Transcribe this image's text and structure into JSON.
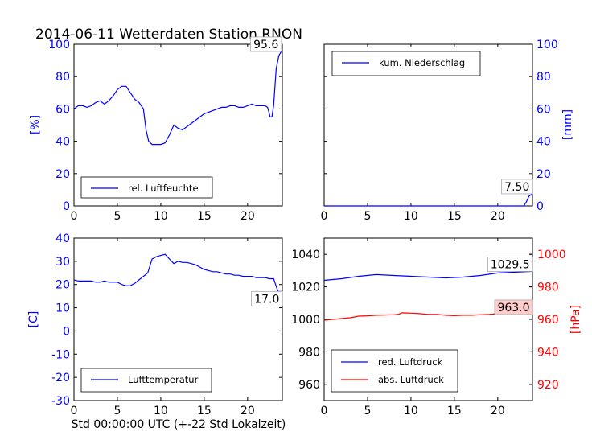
{
  "title": "2014-06-11 Wetterdaten Station RNON",
  "xlabel": "Std 00:00:00 UTC (+-22 Std Lokalzeit)",
  "colors": {
    "blue": "#0000ff",
    "red": "#ff0000"
  },
  "chart_data": [
    {
      "id": "humidity",
      "type": "line",
      "ylabel": "[%]",
      "xlim": [
        0,
        24
      ],
      "ylim": [
        0,
        100
      ],
      "xticks": [
        0,
        5,
        10,
        15,
        20
      ],
      "yticks": [
        0,
        20,
        40,
        60,
        80,
        100
      ],
      "legend_position": "lower-left",
      "series": [
        {
          "name": "rel. Luftfeuchte",
          "color": "#0000ff",
          "x": [
            0,
            0.5,
            1,
            1.5,
            2,
            2.5,
            3,
            3.5,
            4,
            4.5,
            5,
            5.5,
            6,
            6.5,
            7,
            7.5,
            8,
            8.3,
            8.6,
            9,
            9.5,
            10,
            10.5,
            11,
            11.5,
            12,
            12.5,
            13,
            13.5,
            14,
            14.5,
            15,
            15.5,
            16,
            16.5,
            17,
            17.5,
            18,
            18.5,
            19,
            19.5,
            20,
            20.5,
            21,
            21.5,
            22,
            22.3,
            22.6,
            22.8,
            23,
            23.3,
            23.6,
            23.9
          ],
          "values": [
            60,
            62,
            62,
            61,
            62,
            64,
            65,
            63,
            65,
            68,
            72,
            74,
            74,
            70,
            66,
            64,
            60,
            47,
            40,
            38,
            38,
            38,
            39,
            44,
            50,
            48,
            47,
            49,
            51,
            53,
            55,
            57,
            58,
            59,
            60,
            61,
            61,
            62,
            62,
            61,
            61,
            62,
            63,
            62,
            62,
            62,
            61,
            55,
            55,
            62,
            85,
            93,
            95.6
          ]
        }
      ],
      "annotations": [
        {
          "text": "95.6",
          "x": 23.9,
          "y": 95.6,
          "position": "upper-right"
        }
      ]
    },
    {
      "id": "precipitation",
      "type": "line",
      "ylabel": "[mm]",
      "xlim": [
        0,
        24
      ],
      "ylim": [
        0,
        100
      ],
      "xticks": [
        0,
        5,
        10,
        15,
        20
      ],
      "yticks": [
        0,
        20,
        40,
        60,
        80,
        100
      ],
      "y_axis_side": "right",
      "legend_position": "upper-left",
      "series": [
        {
          "name": "kum. Niederschlag",
          "color": "#0000ff",
          "x": [
            0,
            23,
            23.3,
            23.6,
            24
          ],
          "values": [
            0,
            0,
            2.5,
            6,
            7.5
          ]
        }
      ],
      "annotations": [
        {
          "text": "7.50",
          "x": 24,
          "y": 7.5,
          "position": "upper-right"
        }
      ]
    },
    {
      "id": "temperature",
      "type": "line",
      "ylabel": "[C]",
      "xlim": [
        0,
        24
      ],
      "ylim": [
        -30,
        40
      ],
      "xticks": [
        0,
        5,
        10,
        15,
        20
      ],
      "yticks": [
        -30,
        -20,
        -10,
        0,
        10,
        20,
        30,
        40
      ],
      "legend_position": "lower-left",
      "series": [
        {
          "name": "Lufttemperatur",
          "color": "#0000ff",
          "x": [
            0,
            0.5,
            1,
            1.5,
            2,
            2.5,
            3,
            3.5,
            4,
            4.5,
            5,
            5.5,
            6,
            6.5,
            7,
            7.5,
            8,
            8.5,
            9,
            9.5,
            10,
            10.5,
            11,
            11.5,
            12,
            12.5,
            13,
            13.5,
            14,
            14.5,
            15,
            15.5,
            16,
            16.5,
            17,
            17.5,
            18,
            18.5,
            19,
            19.5,
            20,
            20.5,
            21,
            21.5,
            22,
            22.5,
            23,
            23.5,
            24
          ],
          "values": [
            22,
            21.5,
            21.5,
            21.5,
            21.5,
            21,
            21,
            21.5,
            21,
            21,
            21,
            20,
            19.5,
            19.5,
            20.5,
            22,
            23.5,
            25,
            31,
            32,
            32.5,
            33,
            31,
            29,
            30,
            29.5,
            29.5,
            29,
            28.5,
            27.5,
            26.5,
            26,
            25.5,
            25.5,
            25,
            24.5,
            24.5,
            24,
            24,
            23.5,
            23.5,
            23.5,
            23,
            23,
            23,
            22.5,
            22.5,
            17,
            17
          ]
        }
      ],
      "annotations": [
        {
          "text": "17.0",
          "x": 24,
          "y": 17.0,
          "position": "lower-right"
        }
      ]
    },
    {
      "id": "pressure",
      "type": "line",
      "ylabel": "[hPa]",
      "xlim": [
        0,
        24
      ],
      "ylim": [
        950,
        1050
      ],
      "xticks": [
        0,
        5,
        10,
        15,
        20
      ],
      "yticks": [
        960,
        980,
        1000,
        1020,
        1040
      ],
      "y2lim": [
        910,
        1010
      ],
      "y2ticks": [
        920,
        940,
        960,
        980,
        1000
      ],
      "legend_position": "lower-left",
      "series": [
        {
          "name": "red. Luftdruck",
          "color": "#0000ff",
          "axis": "left",
          "x": [
            0,
            2,
            4,
            6,
            8,
            10,
            12,
            14,
            16,
            18,
            20,
            22,
            24
          ],
          "values": [
            1024,
            1025,
            1026.5,
            1027.5,
            1027,
            1026.5,
            1026,
            1025.5,
            1026,
            1027,
            1028.5,
            1029,
            1029.5
          ]
        },
        {
          "name": "abs. Luftdruck",
          "color": "#ff0000",
          "axis": "right",
          "x": [
            0,
            1,
            2,
            3,
            4,
            5,
            6,
            7,
            8,
            8.5,
            9,
            10,
            11,
            12,
            13,
            14,
            15,
            16,
            17,
            18,
            19,
            20,
            21,
            22,
            23,
            24
          ],
          "values": [
            959.5,
            960,
            960.5,
            961,
            962,
            962.2,
            962.5,
            962.6,
            962.8,
            963,
            964,
            963.8,
            963.5,
            963,
            963,
            962.5,
            962.3,
            962.5,
            962.5,
            962.8,
            963,
            963.5,
            963.8,
            964,
            963.5,
            963.0
          ]
        }
      ],
      "annotations": [
        {
          "text": "1029.5",
          "x": 24,
          "y": 1029.5,
          "position": "upper-right",
          "axis": "left"
        },
        {
          "text": "963.0",
          "x": 24,
          "y": 963.0,
          "position": "upper-right",
          "axis": "right",
          "bg": "#ffcccc"
        }
      ]
    }
  ]
}
